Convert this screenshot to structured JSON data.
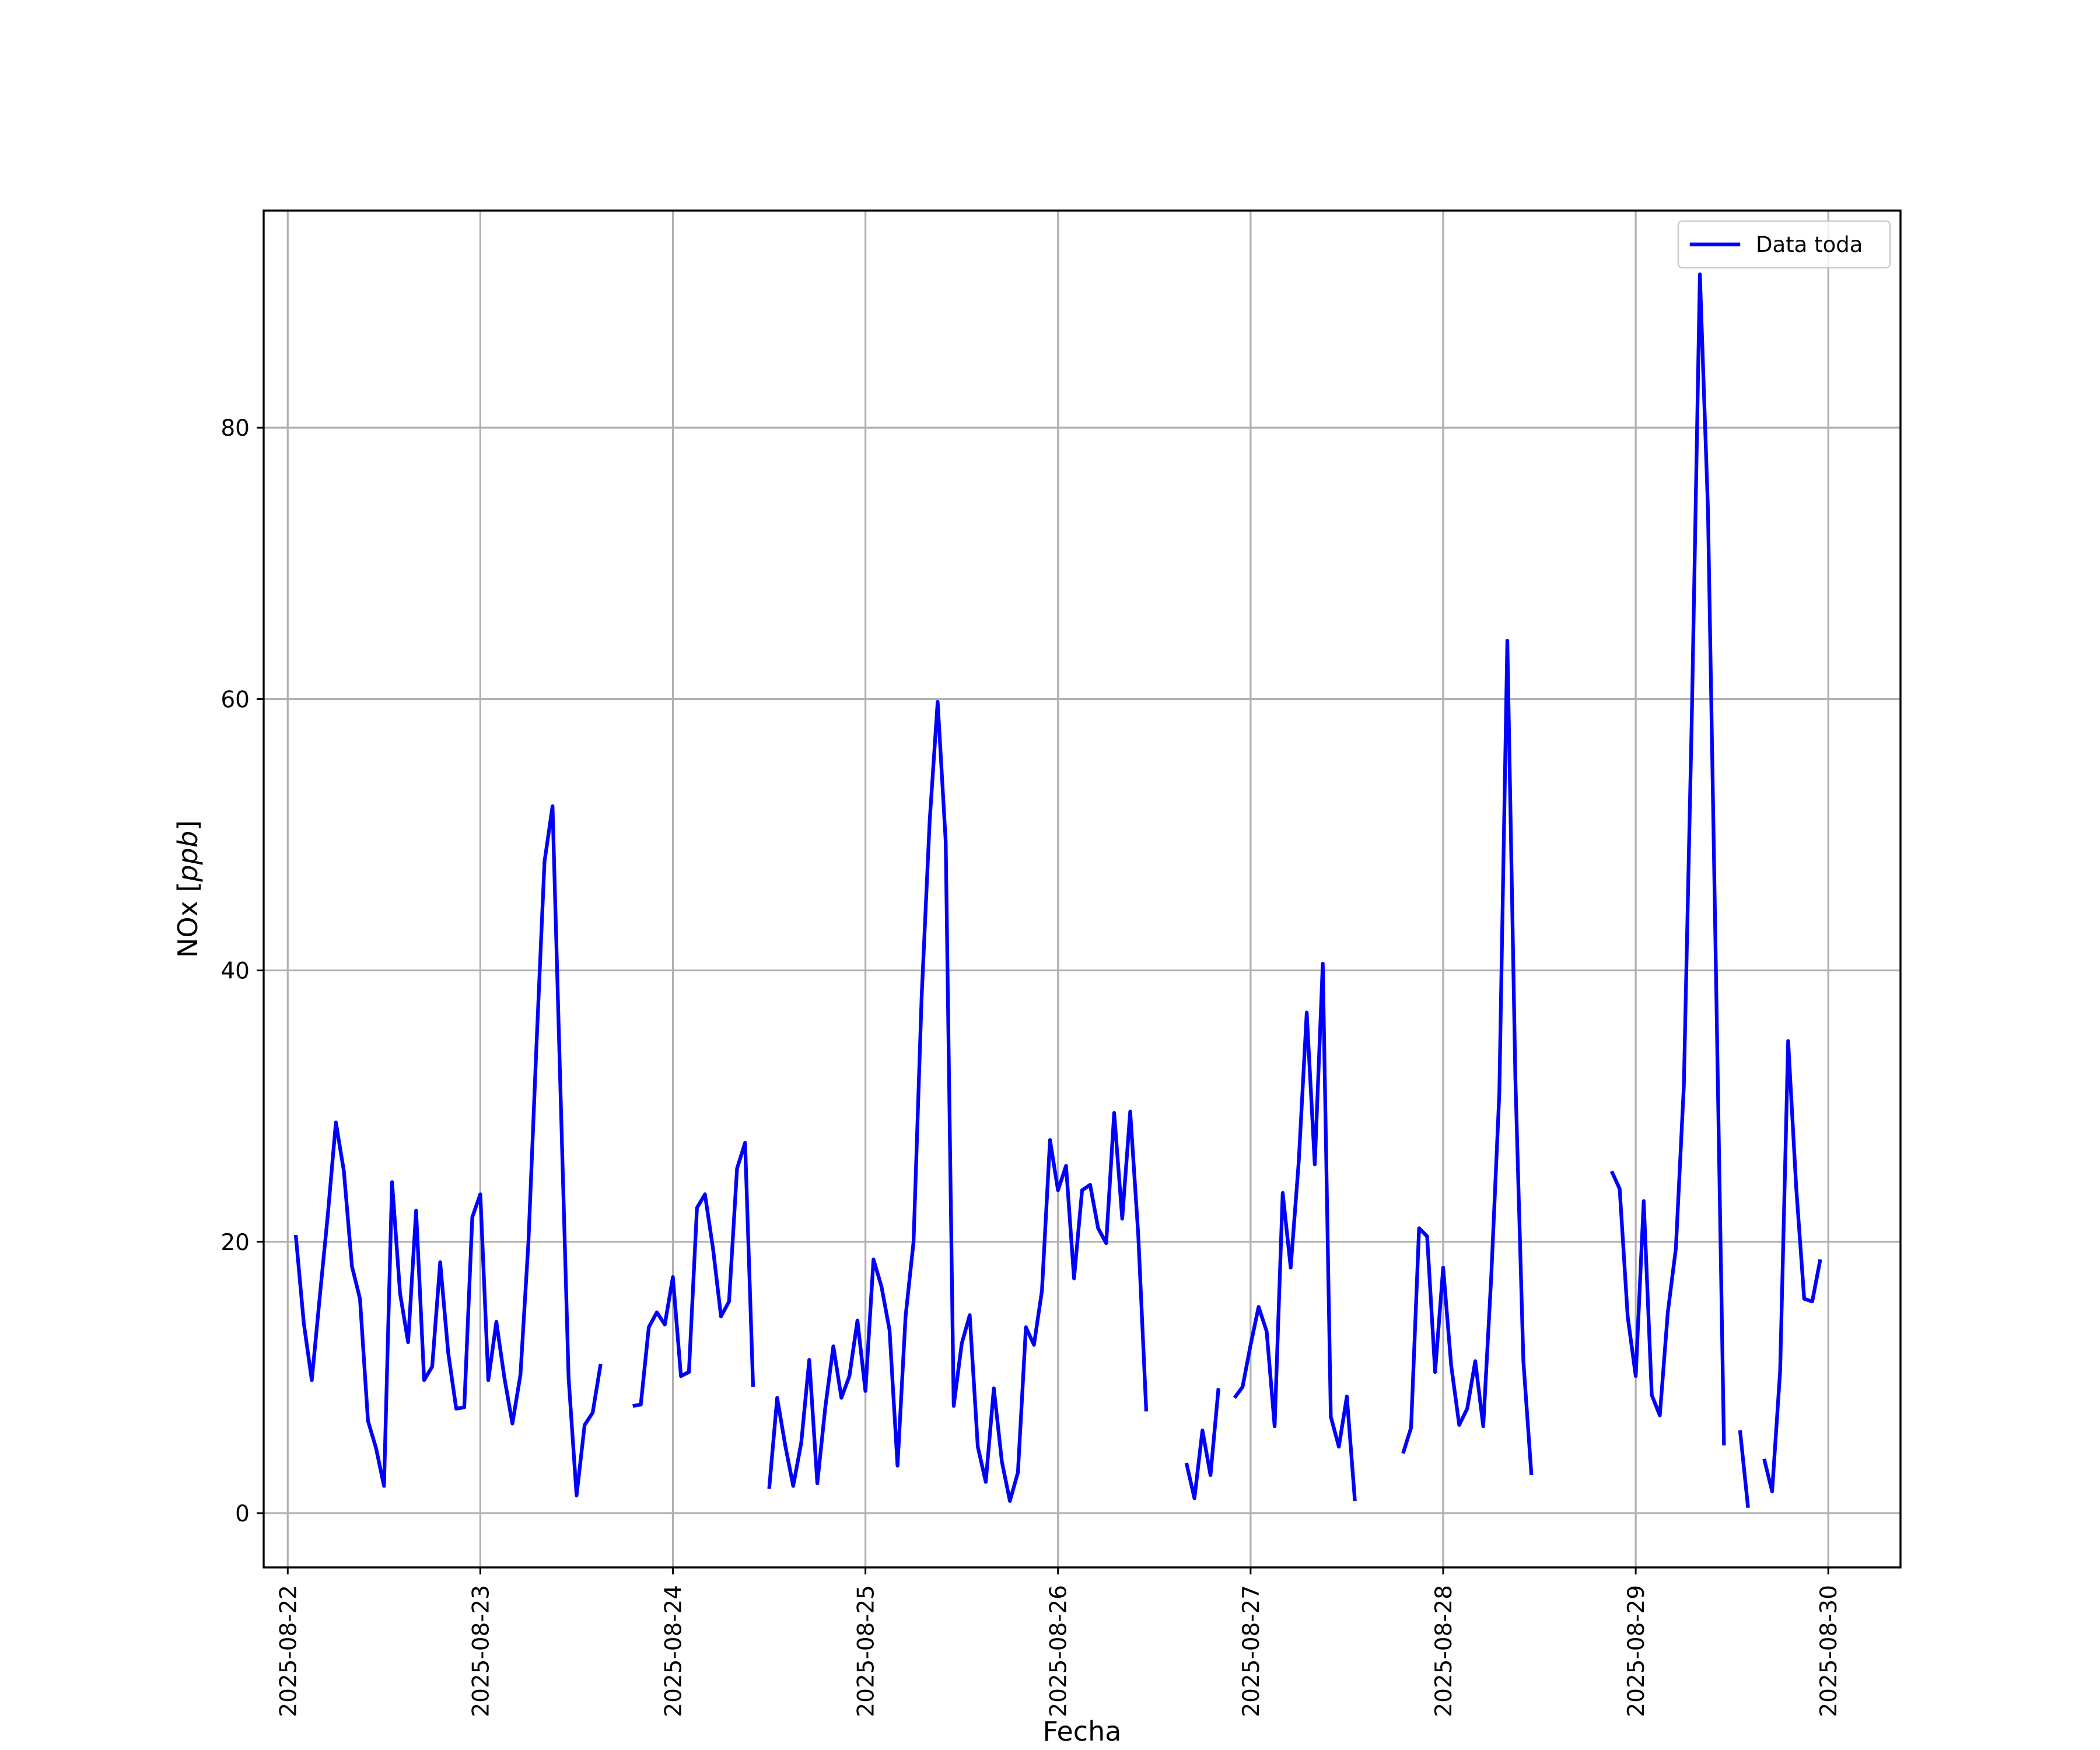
{
  "chart_data": {
    "type": "line",
    "xlabel": "Fecha",
    "ylabel_text": "NOx [",
    "ylabel_unit": "ppb",
    "ylabel_close": "]",
    "ylim": [
      -4,
      96
    ],
    "xlim": [
      "2025-08-21T21:00",
      "2025-08-30T09:00"
    ],
    "x_ticks": [
      "2025-08-22",
      "2025-08-23",
      "2025-08-24",
      "2025-08-25",
      "2025-08-26",
      "2025-08-27",
      "2025-08-28",
      "2025-08-29",
      "2025-08-30"
    ],
    "y_ticks": [
      0,
      20,
      40,
      60,
      80
    ],
    "grid": true,
    "legend_position": "top-right",
    "series": [
      {
        "name": "Data toda",
        "color": "#0000ff",
        "points": [
          [
            "2025-08-22T01:00",
            20.5
          ],
          [
            "2025-08-22T02:00",
            14.0
          ],
          [
            "2025-08-22T03:00",
            9.8
          ],
          [
            "2025-08-22T04:00",
            16.0
          ],
          [
            "2025-08-22T05:00",
            22.0
          ],
          [
            "2025-08-22T06:00",
            28.8
          ],
          [
            "2025-08-22T07:00",
            25.2
          ],
          [
            "2025-08-22T08:00",
            18.2
          ],
          [
            "2025-08-22T09:00",
            15.8
          ],
          [
            "2025-08-22T10:00",
            6.8
          ],
          [
            "2025-08-22T11:00",
            4.8
          ],
          [
            "2025-08-22T12:00",
            2.0
          ],
          [
            "2025-08-22T13:00",
            24.4
          ],
          [
            "2025-08-22T14:00",
            16.2
          ],
          [
            "2025-08-22T15:00",
            12.6
          ],
          [
            "2025-08-22T16:00",
            22.3
          ],
          [
            "2025-08-22T17:00",
            9.8
          ],
          [
            "2025-08-22T18:00",
            10.8
          ],
          [
            "2025-08-22T19:00",
            18.5
          ],
          [
            "2025-08-22T20:00",
            11.8
          ],
          [
            "2025-08-22T21:00",
            7.7
          ],
          [
            "2025-08-22T22:00",
            7.8
          ],
          [
            "2025-08-22T23:00",
            21.8
          ],
          [
            "2025-08-23T00:00",
            23.5
          ],
          [
            "2025-08-23T01:00",
            9.8
          ],
          [
            "2025-08-23T02:00",
            14.1
          ],
          [
            "2025-08-23T03:00",
            10.0
          ],
          [
            "2025-08-23T04:00",
            6.6
          ],
          [
            "2025-08-23T05:00",
            10.2
          ],
          [
            "2025-08-23T06:00",
            20.0
          ],
          [
            "2025-08-23T07:00",
            34.5
          ],
          [
            "2025-08-23T08:00",
            48.0
          ],
          [
            "2025-08-23T09:00",
            52.1
          ],
          [
            "2025-08-23T10:00",
            31.0
          ],
          [
            "2025-08-23T11:00",
            10.0
          ],
          [
            "2025-08-23T12:00",
            1.3
          ],
          [
            "2025-08-23T13:00",
            6.5
          ],
          [
            "2025-08-23T14:00",
            7.4
          ],
          [
            "2025-08-23T15:00",
            11.0
          ],
          null,
          [
            "2025-08-23T19:00",
            7.9
          ],
          [
            "2025-08-23T20:00",
            8.0
          ],
          [
            "2025-08-23T21:00",
            13.7
          ],
          [
            "2025-08-23T22:00",
            14.8
          ],
          [
            "2025-08-23T23:00",
            13.9
          ],
          [
            "2025-08-24T00:00",
            17.4
          ],
          [
            "2025-08-24T01:00",
            10.1
          ],
          [
            "2025-08-24T02:00",
            10.4
          ],
          [
            "2025-08-24T03:00",
            22.5
          ],
          [
            "2025-08-24T04:00",
            23.5
          ],
          [
            "2025-08-24T05:00",
            19.5
          ],
          [
            "2025-08-24T06:00",
            14.5
          ],
          [
            "2025-08-24T07:00",
            15.6
          ],
          [
            "2025-08-24T08:00",
            25.4
          ],
          [
            "2025-08-24T09:00",
            27.3
          ],
          [
            "2025-08-24T10:00",
            9.3
          ],
          null,
          [
            "2025-08-24T12:00",
            1.8
          ],
          [
            "2025-08-24T13:00",
            8.5
          ],
          [
            "2025-08-24T14:00",
            5.0
          ],
          [
            "2025-08-24T15:00",
            2.0
          ],
          [
            "2025-08-24T16:00",
            5.2
          ],
          [
            "2025-08-24T17:00",
            11.3
          ],
          [
            "2025-08-24T18:00",
            2.2
          ],
          [
            "2025-08-24T19:00",
            7.8
          ],
          [
            "2025-08-24T20:00",
            12.3
          ],
          [
            "2025-08-24T21:00",
            8.5
          ],
          [
            "2025-08-24T22:00",
            10.1
          ],
          [
            "2025-08-24T23:00",
            14.2
          ],
          [
            "2025-08-25T00:00",
            9.0
          ],
          [
            "2025-08-25T01:00",
            18.7
          ],
          [
            "2025-08-25T02:00",
            16.7
          ],
          [
            "2025-08-25T03:00",
            13.5
          ],
          [
            "2025-08-25T04:00",
            3.5
          ],
          [
            "2025-08-25T05:00",
            14.5
          ],
          [
            "2025-08-25T06:00",
            20.0
          ],
          [
            "2025-08-25T07:00",
            38.0
          ],
          [
            "2025-08-25T08:00",
            51.0
          ],
          [
            "2025-08-25T09:00",
            59.8
          ],
          [
            "2025-08-25T10:00",
            49.5
          ],
          [
            "2025-08-25T11:00",
            7.9
          ],
          [
            "2025-08-25T12:00",
            12.5
          ],
          [
            "2025-08-25T13:00",
            14.6
          ],
          [
            "2025-08-25T14:00",
            4.9
          ],
          [
            "2025-08-25T15:00",
            2.3
          ],
          [
            "2025-08-25T16:00",
            9.2
          ],
          [
            "2025-08-25T17:00",
            3.8
          ],
          [
            "2025-08-25T18:00",
            0.9
          ],
          [
            "2025-08-25T19:00",
            3.0
          ],
          [
            "2025-08-25T20:00",
            13.7
          ],
          [
            "2025-08-25T21:00",
            12.4
          ],
          [
            "2025-08-25T22:00",
            16.4
          ],
          [
            "2025-08-25T23:00",
            27.5
          ],
          [
            "2025-08-26T00:00",
            23.8
          ],
          [
            "2025-08-26T01:00",
            25.6
          ],
          [
            "2025-08-26T02:00",
            17.3
          ],
          [
            "2025-08-26T03:00",
            23.8
          ],
          [
            "2025-08-26T04:00",
            24.2
          ],
          [
            "2025-08-26T05:00",
            21.0
          ],
          [
            "2025-08-26T06:00",
            19.9
          ],
          [
            "2025-08-26T07:00",
            29.5
          ],
          [
            "2025-08-26T08:00",
            21.7
          ],
          [
            "2025-08-26T09:00",
            29.6
          ],
          [
            "2025-08-26T10:00",
            20.5
          ],
          [
            "2025-08-26T11:00",
            7.5
          ],
          null,
          [
            "2025-08-26T16:00",
            3.7
          ],
          [
            "2025-08-26T17:00",
            1.1
          ],
          [
            "2025-08-26T18:00",
            6.1
          ],
          [
            "2025-08-26T19:00",
            2.8
          ],
          [
            "2025-08-26T20:00",
            9.2
          ],
          null,
          [
            "2025-08-26T22:00",
            8.5
          ],
          [
            "2025-08-26T23:00",
            9.3
          ],
          [
            "2025-08-27T00:00",
            12.4
          ],
          [
            "2025-08-27T01:00",
            15.2
          ],
          [
            "2025-08-27T02:00",
            13.4
          ],
          [
            "2025-08-27T03:00",
            6.4
          ],
          [
            "2025-08-27T04:00",
            23.6
          ],
          [
            "2025-08-27T05:00",
            18.1
          ],
          [
            "2025-08-27T06:00",
            25.9
          ],
          [
            "2025-08-27T07:00",
            36.9
          ],
          [
            "2025-08-27T08:00",
            25.7
          ],
          [
            "2025-08-27T09:00",
            40.5
          ],
          [
            "2025-08-27T10:00",
            7.1
          ],
          [
            "2025-08-27T11:00",
            4.9
          ],
          [
            "2025-08-27T12:00",
            8.6
          ],
          [
            "2025-08-27T13:00",
            0.9
          ],
          null,
          [
            "2025-08-27T19:00",
            4.4
          ],
          [
            "2025-08-27T20:00",
            6.3
          ],
          [
            "2025-08-27T21:00",
            21.0
          ],
          [
            "2025-08-27T22:00",
            20.4
          ],
          [
            "2025-08-27T23:00",
            10.4
          ],
          [
            "2025-08-28T00:00",
            18.1
          ],
          [
            "2025-08-28T01:00",
            10.9
          ],
          [
            "2025-08-28T02:00",
            6.5
          ],
          [
            "2025-08-28T03:00",
            7.7
          ],
          [
            "2025-08-28T04:00",
            11.2
          ],
          [
            "2025-08-28T05:00",
            6.4
          ],
          [
            "2025-08-28T06:00",
            17.5
          ],
          [
            "2025-08-28T07:00",
            31.0
          ],
          [
            "2025-08-28T08:00",
            64.3
          ],
          [
            "2025-08-28T09:00",
            32.0
          ],
          [
            "2025-08-28T10:00",
            11.2
          ],
          [
            "2025-08-28T11:00",
            2.8
          ],
          null,
          [
            "2025-08-28T21:00",
            25.2
          ],
          [
            "2025-08-28T22:00",
            23.9
          ],
          [
            "2025-08-28T23:00",
            14.5
          ],
          [
            "2025-08-29T00:00",
            10.1
          ],
          [
            "2025-08-29T01:00",
            23.0
          ],
          [
            "2025-08-29T02:00",
            8.7
          ],
          [
            "2025-08-29T03:00",
            7.2
          ],
          [
            "2025-08-29T04:00",
            14.8
          ],
          [
            "2025-08-29T05:00",
            19.5
          ],
          [
            "2025-08-29T06:00",
            31.5
          ],
          [
            "2025-08-29T07:00",
            59.0
          ],
          [
            "2025-08-29T08:00",
            91.3
          ],
          [
            "2025-08-29T09:00",
            74.0
          ],
          [
            "2025-08-29T10:00",
            40.0
          ],
          [
            "2025-08-29T11:00",
            5.0
          ],
          null,
          [
            "2025-08-29T13:00",
            6.1
          ],
          [
            "2025-08-29T14:00",
            0.4
          ],
          null,
          [
            "2025-08-29T16:00",
            4.0
          ],
          [
            "2025-08-29T17:00",
            1.6
          ],
          [
            "2025-08-29T18:00",
            10.5
          ],
          [
            "2025-08-29T19:00",
            34.8
          ],
          [
            "2025-08-29T20:00",
            24.0
          ],
          [
            "2025-08-29T21:00",
            15.8
          ],
          [
            "2025-08-29T22:00",
            15.6
          ],
          [
            "2025-08-29T23:00",
            18.7
          ]
        ]
      }
    ]
  }
}
